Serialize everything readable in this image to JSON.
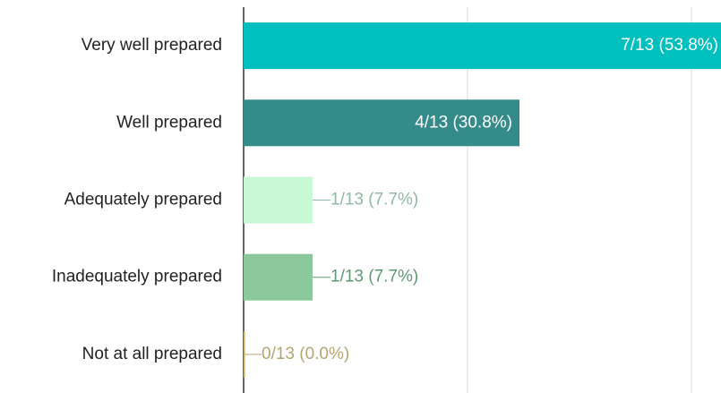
{
  "chart_data": {
    "type": "bar",
    "orientation": "horizontal",
    "categories": [
      "Very well prepared",
      "Well prepared",
      "Adequately prepared",
      "Inadequately prepared",
      "Not at all prepared"
    ],
    "values": [
      53.8,
      30.8,
      7.7,
      7.7,
      0
    ],
    "value_labels": [
      "7/13 (53.8%)",
      "4/13 (30.8%)",
      "1/13 (7.7%)",
      "1/13 (7.7%)",
      "0/13 (0.0%)"
    ],
    "colors": [
      "#00bfbf",
      "#358a8a",
      "#c9f8d6",
      "#8bc99c",
      "#c4b060"
    ],
    "label_colors": [
      "#ffffff",
      "#ffffff",
      "#8fb9a2",
      "#5e9a74",
      "#b3a670"
    ],
    "xlim": [
      0,
      53.3
    ],
    "xticks": [
      0,
      25,
      50
    ],
    "grid": true
  }
}
